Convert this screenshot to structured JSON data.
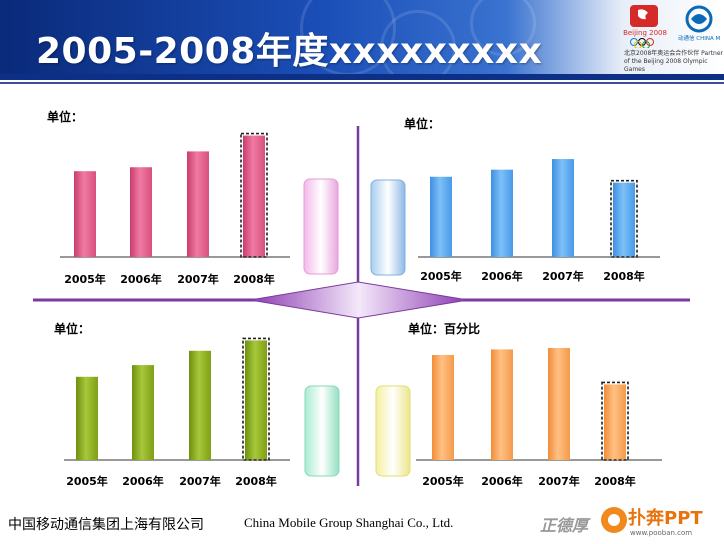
{
  "title": "2005-2008年度xxxxxxxxx",
  "partner_text": "北京2008年奥运会合作伙伴 Partner of the Beijing 2008 Olympic Games",
  "olympic_logo_text": "Beijing 2008",
  "cm_logo_text": "中国移动通信 CHINA MOBILE",
  "footer": {
    "company_cn": "中国移动通信集团上海有限公司",
    "company_en": "China Mobile Group Shanghai Co., Ltd."
  },
  "signature": "正德厚",
  "brand": {
    "name": "扑奔PPT",
    "url": "www.pooban.com"
  },
  "colors": {
    "pink": "#e05a8a",
    "blue": "#5ba8ef",
    "green": "#8aad1a",
    "orange": "#f5a65b",
    "divider": "#7a3aa0"
  },
  "chart_data": [
    {
      "type": "bar",
      "position": "top-left",
      "unit_label": "单位：",
      "categories": [
        "2005年",
        "2006年",
        "2007年",
        "2008年"
      ],
      "values": [
        65,
        68,
        80,
        92
      ],
      "ylim": [
        0,
        100
      ],
      "highlight_last": true
    },
    {
      "type": "bar",
      "position": "top-right",
      "unit_label": "单位：",
      "categories": [
        "2005年",
        "2006年",
        "2007年",
        "2008年"
      ],
      "values": [
        68,
        74,
        83,
        63
      ],
      "ylim": [
        0,
        100
      ],
      "highlight_last": true
    },
    {
      "type": "bar",
      "position": "bottom-left",
      "unit_label": "单位：",
      "categories": [
        "2005年",
        "2006年",
        "2007年",
        "2008年"
      ],
      "values": [
        64,
        73,
        84,
        92
      ],
      "ylim": [
        0,
        100
      ],
      "highlight_last": true
    },
    {
      "type": "bar",
      "position": "bottom-right",
      "unit_label": "单位：百分比",
      "categories": [
        "2005年",
        "2006年",
        "2007年",
        "2008年"
      ],
      "values": [
        75,
        79,
        80,
        54
      ],
      "ylim": [
        0,
        100
      ],
      "highlight_last": true
    }
  ]
}
